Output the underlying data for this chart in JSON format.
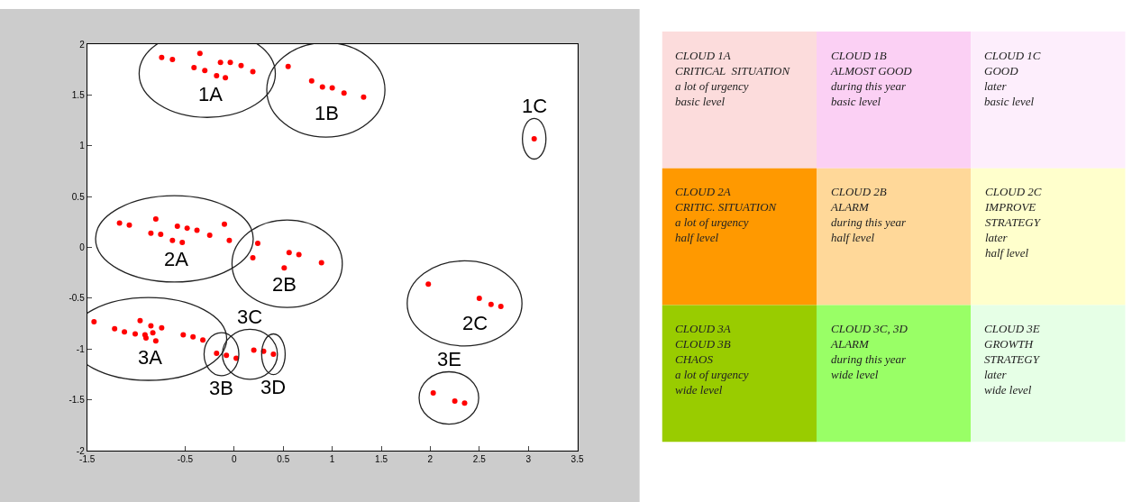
{
  "chart_data": [
    {
      "type": "scatter",
      "xlim": [
        -1.5,
        3.5
      ],
      "ylim": [
        -2,
        2
      ],
      "xticks": [
        -1.5,
        -0.5,
        0,
        0.5,
        1,
        1.5,
        2,
        2.5,
        3,
        3.5
      ],
      "yticks": [
        -2,
        -1.5,
        -1,
        -0.5,
        0,
        0.5,
        1,
        1.5,
        2
      ],
      "grid": false,
      "marker": "circle",
      "series": [
        {
          "name": "1A",
          "color": "#ff0000",
          "x": [
            -0.74,
            -0.63,
            -0.35,
            -0.41,
            -0.3,
            -0.14,
            -0.04,
            -0.18,
            -0.09,
            0.07,
            0.19
          ],
          "values": [
            1.87,
            1.85,
            1.91,
            1.77,
            1.74,
            1.82,
            1.82,
            1.69,
            1.67,
            1.79,
            1.73
          ]
        },
        {
          "name": "1B",
          "color": "#ff0000",
          "x": [
            0.55,
            0.79,
            0.9,
            1.0,
            1.12,
            1.32
          ],
          "values": [
            1.78,
            1.64,
            1.58,
            1.57,
            1.52,
            1.48
          ]
        },
        {
          "name": "1C",
          "color": "#ff0000",
          "x": [
            3.06
          ],
          "values": [
            1.07
          ]
        },
        {
          "name": "2A",
          "color": "#ff0000",
          "x": [
            -1.17,
            -1.07,
            -0.8,
            -0.85,
            -0.75,
            -0.63,
            -0.53,
            -0.58,
            -0.48,
            -0.38,
            -0.25,
            -0.1,
            -0.05
          ],
          "values": [
            0.24,
            0.22,
            0.28,
            0.14,
            0.13,
            0.07,
            0.05,
            0.21,
            0.19,
            0.17,
            0.12,
            0.23,
            0.07
          ]
        },
        {
          "name": "2B",
          "color": "#ff0000",
          "x": [
            0.24,
            0.19,
            0.56,
            0.66,
            0.51,
            0.89
          ],
          "values": [
            0.04,
            -0.1,
            -0.05,
            -0.07,
            -0.2,
            -0.15
          ]
        },
        {
          "name": "2C",
          "color": "#ff0000",
          "x": [
            1.98,
            2.5,
            2.62,
            2.72
          ],
          "values": [
            -0.36,
            -0.5,
            -0.56,
            -0.58
          ]
        },
        {
          "name": "3A",
          "color": "#ff0000",
          "x": [
            -1.43,
            -1.22,
            -1.12,
            -1.01,
            -0.96,
            -0.91,
            -0.9,
            -0.85,
            -0.8,
            -0.74,
            -0.83,
            -0.52,
            -0.42,
            -0.32
          ],
          "values": [
            -0.73,
            -0.8,
            -0.83,
            -0.85,
            -0.72,
            -0.86,
            -0.89,
            -0.77,
            -0.92,
            -0.79,
            -0.84,
            -0.86,
            -0.88,
            -0.91
          ]
        },
        {
          "name": "3B",
          "color": "#ff0000",
          "x": [
            -0.18,
            -0.08
          ],
          "values": [
            -1.04,
            -1.06
          ]
        },
        {
          "name": "3C",
          "color": "#ff0000",
          "x": [
            0.02,
            0.2,
            0.3
          ],
          "values": [
            -1.09,
            -1.01,
            -1.02
          ]
        },
        {
          "name": "3D",
          "color": "#ff0000",
          "x": [
            0.4
          ],
          "values": [
            -1.05
          ]
        },
        {
          "name": "3E",
          "color": "#ff0000",
          "x": [
            2.03,
            2.25,
            2.35
          ],
          "values": [
            -1.43,
            -1.51,
            -1.53
          ]
        }
      ]
    },
    {
      "type": "other",
      "annotations": [
        "CLOUD 1A\nCRITICAL  SITUATION\na lot of urgency\nbasic level",
        "CLOUD 1B\nALMOST GOOD\nduring this year\nbasic level",
        "CLOUD 1C\nGOOD\nlater\nbasic level",
        "CLOUD 2A\nCRITIC. SITUATION\na lot of urgency\nhalf level",
        "CLOUD 2B\nALARM\nduring this year\nhalf level",
        "CLOUD 2C\nIMPROVE\nSTRATEGY\nlater\nhalf level",
        "CLOUD 3A\nCLOUD 3B\nCHAOS\na lot of urgency\nwide level",
        "CLOUD 3C, 3D\nALARM\nduring this year\nwide level",
        "CLOUD 3E\nGROWTH\nSTRATEGY\nlater\nwide level"
      ],
      "colors": [
        "#fcdcdc",
        "#fbd0f4",
        "#fdeefc",
        "#ff9900",
        "#ffd899",
        "#ffffcc",
        "#99cc00",
        "#99ff66",
        "#e6ffe6"
      ]
    }
  ]
}
